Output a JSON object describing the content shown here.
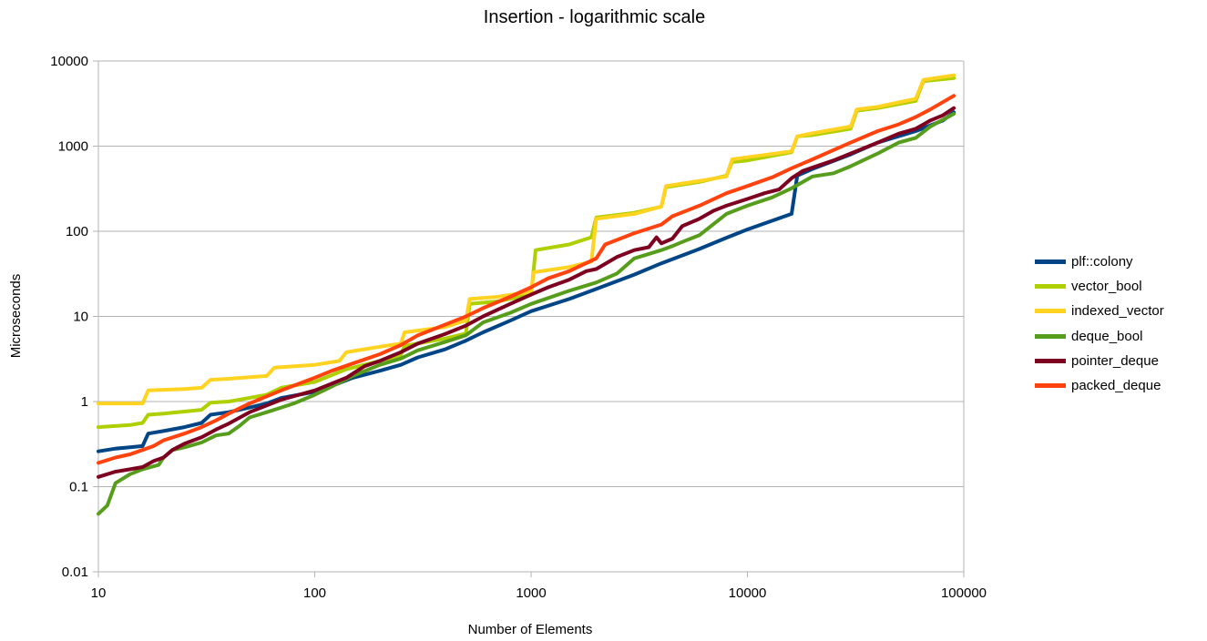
{
  "chart_data": {
    "type": "line",
    "title": "Insertion - logarithmic scale",
    "xlabel": "Number of Elements",
    "ylabel": "Microseconds",
    "x_scale": "log",
    "y_scale": "log",
    "xlim": [
      10,
      100000
    ],
    "ylim": [
      0.01,
      10000
    ],
    "x_ticks": [
      "10",
      "100",
      "1000",
      "10000",
      "100000"
    ],
    "y_ticks": [
      "0.01",
      "0.1",
      "1",
      "10",
      "100",
      "1000",
      "10000"
    ],
    "grid": "horizontal",
    "legend_position": "right",
    "series": [
      {
        "name": "plf::colony",
        "color": "#004586",
        "points": [
          [
            10,
            0.26
          ],
          [
            12,
            0.28
          ],
          [
            14,
            0.29
          ],
          [
            16,
            0.3
          ],
          [
            17,
            0.42
          ],
          [
            20,
            0.45
          ],
          [
            25,
            0.5
          ],
          [
            30,
            0.56
          ],
          [
            33,
            0.7
          ],
          [
            40,
            0.75
          ],
          [
            50,
            0.85
          ],
          [
            60,
            0.95
          ],
          [
            70,
            1.1
          ],
          [
            100,
            1.3
          ],
          [
            130,
            1.65
          ],
          [
            150,
            1.9
          ],
          [
            200,
            2.3
          ],
          [
            250,
            2.7
          ],
          [
            300,
            3.3
          ],
          [
            400,
            4.1
          ],
          [
            500,
            5.2
          ],
          [
            600,
            6.5
          ],
          [
            800,
            8.9
          ],
          [
            1000,
            11.5
          ],
          [
            1500,
            16
          ],
          [
            2000,
            21
          ],
          [
            3000,
            31
          ],
          [
            4000,
            42
          ],
          [
            6000,
            62
          ],
          [
            8000,
            84
          ],
          [
            10000,
            105
          ],
          [
            16000,
            160
          ],
          [
            17000,
            450
          ],
          [
            20000,
            540
          ],
          [
            30000,
            800
          ],
          [
            40000,
            1100
          ],
          [
            60000,
            1500
          ],
          [
            80000,
            2000
          ],
          [
            90000,
            2500
          ]
        ]
      },
      {
        "name": "vector_bool",
        "color": "#aecf00",
        "points": [
          [
            10,
            0.5
          ],
          [
            14,
            0.53
          ],
          [
            16,
            0.56
          ],
          [
            17,
            0.7
          ],
          [
            20,
            0.72
          ],
          [
            30,
            0.8
          ],
          [
            33,
            0.97
          ],
          [
            40,
            1.0
          ],
          [
            60,
            1.2
          ],
          [
            70,
            1.45
          ],
          [
            100,
            1.7
          ],
          [
            140,
            2.4
          ],
          [
            200,
            3.0
          ],
          [
            250,
            3.5
          ],
          [
            260,
            4.5
          ],
          [
            400,
            5.5
          ],
          [
            500,
            6.3
          ],
          [
            520,
            14
          ],
          [
            700,
            15
          ],
          [
            1000,
            18
          ],
          [
            1050,
            60
          ],
          [
            1500,
            70
          ],
          [
            1900,
            85
          ],
          [
            2000,
            145
          ],
          [
            3000,
            165
          ],
          [
            4000,
            195
          ],
          [
            4200,
            330
          ],
          [
            6000,
            380
          ],
          [
            8000,
            450
          ],
          [
            8500,
            650
          ],
          [
            10000,
            680
          ],
          [
            16000,
            850
          ],
          [
            17000,
            1300
          ],
          [
            20000,
            1350
          ],
          [
            30000,
            1600
          ],
          [
            32000,
            2600
          ],
          [
            40000,
            2800
          ],
          [
            60000,
            3400
          ],
          [
            65000,
            5800
          ],
          [
            90000,
            6300
          ]
        ]
      },
      {
        "name": "indexed_vector",
        "color": "#ffd320",
        "points": [
          [
            10,
            0.95
          ],
          [
            16,
            0.95
          ],
          [
            17,
            1.35
          ],
          [
            25,
            1.4
          ],
          [
            30,
            1.45
          ],
          [
            33,
            1.8
          ],
          [
            40,
            1.85
          ],
          [
            60,
            2.0
          ],
          [
            65,
            2.5
          ],
          [
            100,
            2.7
          ],
          [
            130,
            3.0
          ],
          [
            140,
            3.8
          ],
          [
            200,
            4.4
          ],
          [
            250,
            4.8
          ],
          [
            260,
            6.5
          ],
          [
            400,
            7.5
          ],
          [
            500,
            9.0
          ],
          [
            520,
            16
          ],
          [
            700,
            17
          ],
          [
            1000,
            19.5
          ],
          [
            1030,
            33
          ],
          [
            1500,
            38
          ],
          [
            1900,
            44
          ],
          [
            2000,
            140
          ],
          [
            3000,
            160
          ],
          [
            4000,
            195
          ],
          [
            4200,
            340
          ],
          [
            6000,
            390
          ],
          [
            8000,
            440
          ],
          [
            8500,
            700
          ],
          [
            10000,
            740
          ],
          [
            16000,
            870
          ],
          [
            17000,
            1300
          ],
          [
            20000,
            1420
          ],
          [
            30000,
            1700
          ],
          [
            32000,
            2700
          ],
          [
            40000,
            2900
          ],
          [
            60000,
            3600
          ],
          [
            65000,
            6000
          ],
          [
            90000,
            6800
          ]
        ]
      },
      {
        "name": "deque_bool",
        "color": "#579d1c",
        "points": [
          [
            10,
            0.048
          ],
          [
            11,
            0.06
          ],
          [
            12,
            0.11
          ],
          [
            14,
            0.14
          ],
          [
            16,
            0.16
          ],
          [
            19,
            0.18
          ],
          [
            20,
            0.22
          ],
          [
            22,
            0.27
          ],
          [
            25,
            0.29
          ],
          [
            30,
            0.33
          ],
          [
            35,
            0.4
          ],
          [
            40,
            0.42
          ],
          [
            45,
            0.52
          ],
          [
            50,
            0.65
          ],
          [
            60,
            0.75
          ],
          [
            70,
            0.85
          ],
          [
            80,
            0.95
          ],
          [
            100,
            1.2
          ],
          [
            120,
            1.5
          ],
          [
            150,
            2.0
          ],
          [
            200,
            2.7
          ],
          [
            250,
            3.2
          ],
          [
            300,
            4.0
          ],
          [
            400,
            5.0
          ],
          [
            500,
            6.0
          ],
          [
            600,
            8.5
          ],
          [
            800,
            11
          ],
          [
            1000,
            14
          ],
          [
            1500,
            20
          ],
          [
            2000,
            25
          ],
          [
            2500,
            32
          ],
          [
            3000,
            48
          ],
          [
            4000,
            60
          ],
          [
            4500,
            67
          ],
          [
            5000,
            75
          ],
          [
            6000,
            90
          ],
          [
            8000,
            160
          ],
          [
            10000,
            200
          ],
          [
            13000,
            250
          ],
          [
            16000,
            320
          ],
          [
            20000,
            440
          ],
          [
            25000,
            480
          ],
          [
            30000,
            580
          ],
          [
            40000,
            820
          ],
          [
            50000,
            1100
          ],
          [
            60000,
            1250
          ],
          [
            70000,
            1700
          ],
          [
            90000,
            2400
          ]
        ]
      },
      {
        "name": "pointer_deque",
        "color": "#7e0021",
        "points": [
          [
            10,
            0.13
          ],
          [
            12,
            0.15
          ],
          [
            14,
            0.16
          ],
          [
            16,
            0.17
          ],
          [
            18,
            0.2
          ],
          [
            20,
            0.22
          ],
          [
            22,
            0.27
          ],
          [
            25,
            0.32
          ],
          [
            30,
            0.38
          ],
          [
            35,
            0.47
          ],
          [
            40,
            0.55
          ],
          [
            50,
            0.75
          ],
          [
            60,
            0.9
          ],
          [
            70,
            1.05
          ],
          [
            100,
            1.35
          ],
          [
            140,
            1.9
          ],
          [
            170,
            2.6
          ],
          [
            200,
            3.0
          ],
          [
            250,
            3.8
          ],
          [
            300,
            4.8
          ],
          [
            400,
            6.2
          ],
          [
            500,
            7.8
          ],
          [
            600,
            10
          ],
          [
            800,
            14
          ],
          [
            1000,
            18
          ],
          [
            1200,
            22
          ],
          [
            1500,
            27
          ],
          [
            1800,
            34
          ],
          [
            2000,
            36
          ],
          [
            2500,
            50
          ],
          [
            3000,
            60
          ],
          [
            3500,
            65
          ],
          [
            3800,
            85
          ],
          [
            4000,
            72
          ],
          [
            4500,
            82
          ],
          [
            5000,
            115
          ],
          [
            6000,
            140
          ],
          [
            7000,
            175
          ],
          [
            8000,
            200
          ],
          [
            10000,
            240
          ],
          [
            12000,
            280
          ],
          [
            14000,
            310
          ],
          [
            16000,
            420
          ],
          [
            18000,
            510
          ],
          [
            20000,
            560
          ],
          [
            25000,
            680
          ],
          [
            30000,
            820
          ],
          [
            40000,
            1100
          ],
          [
            50000,
            1400
          ],
          [
            60000,
            1600
          ],
          [
            70000,
            2000
          ],
          [
            80000,
            2300
          ],
          [
            90000,
            2800
          ]
        ]
      },
      {
        "name": "packed_deque",
        "color": "#ff420e",
        "points": [
          [
            10,
            0.19
          ],
          [
            12,
            0.22
          ],
          [
            14,
            0.24
          ],
          [
            16,
            0.27
          ],
          [
            18,
            0.3
          ],
          [
            20,
            0.35
          ],
          [
            25,
            0.42
          ],
          [
            30,
            0.5
          ],
          [
            35,
            0.6
          ],
          [
            40,
            0.72
          ],
          [
            50,
            0.95
          ],
          [
            60,
            1.15
          ],
          [
            70,
            1.35
          ],
          [
            100,
            1.9
          ],
          [
            120,
            2.3
          ],
          [
            150,
            2.8
          ],
          [
            200,
            3.6
          ],
          [
            250,
            4.6
          ],
          [
            300,
            6.0
          ],
          [
            400,
            8.0
          ],
          [
            500,
            10
          ],
          [
            600,
            12.5
          ],
          [
            800,
            17
          ],
          [
            1000,
            22
          ],
          [
            1200,
            28
          ],
          [
            1500,
            34
          ],
          [
            2000,
            48
          ],
          [
            2200,
            70
          ],
          [
            3000,
            95
          ],
          [
            4000,
            120
          ],
          [
            4500,
            150
          ],
          [
            6000,
            200
          ],
          [
            8000,
            280
          ],
          [
            10000,
            340
          ],
          [
            13000,
            430
          ],
          [
            16000,
            550
          ],
          [
            20000,
            700
          ],
          [
            25000,
            900
          ],
          [
            30000,
            1100
          ],
          [
            40000,
            1500
          ],
          [
            50000,
            1800
          ],
          [
            60000,
            2200
          ],
          [
            70000,
            2700
          ],
          [
            90000,
            3900
          ]
        ]
      }
    ]
  }
}
